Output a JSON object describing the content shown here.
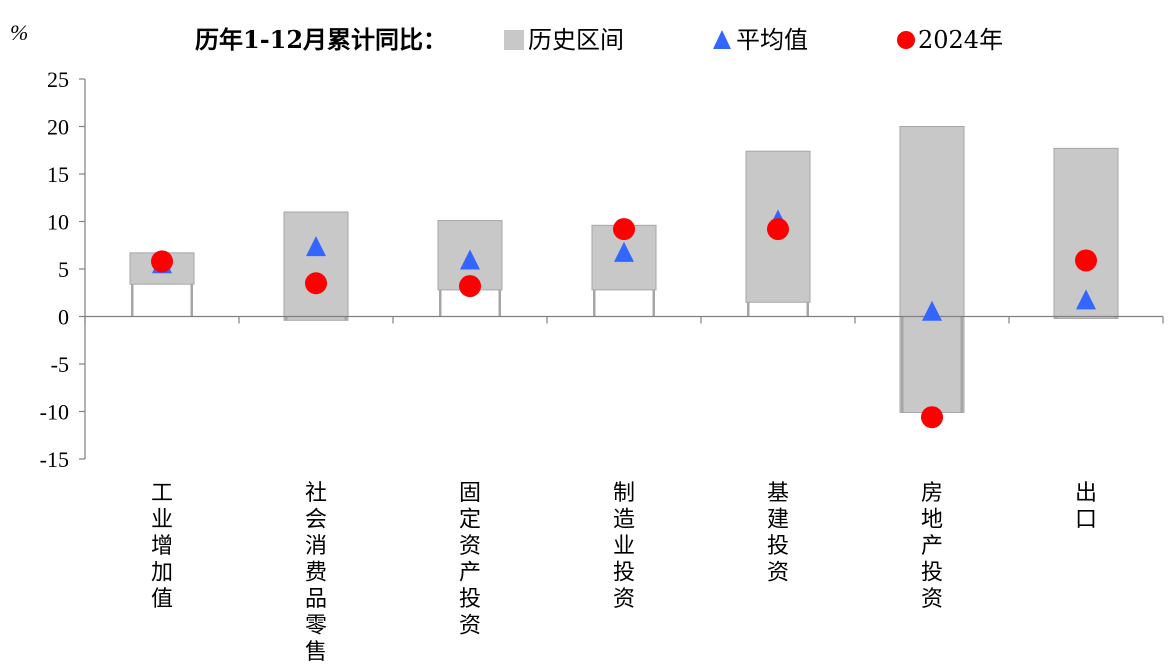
{
  "chart_data": {
    "type": "range-bar-with-markers",
    "unit_label": "%",
    "legend_title": "历年1-12月累计同比：",
    "legend": {
      "range": "历史区间",
      "mean": "平均值",
      "current": "2024年"
    },
    "ylim": [
      -15,
      25
    ],
    "yticks": [
      25,
      20,
      15,
      10,
      5,
      0,
      -5,
      -10,
      -15
    ],
    "ytick_labels": [
      "25",
      "20",
      "15",
      "10",
      "5",
      "0",
      "-5",
      "-10",
      "-15"
    ],
    "categories": [
      "工业增加值",
      "社会消费品零售",
      "固定资产投资",
      "制造业投资",
      "基建投资",
      "房地产投资",
      "出口"
    ],
    "series": [
      {
        "name": "历史区间",
        "kind": "range",
        "low": [
          3.4,
          -0.4,
          2.8,
          2.8,
          1.5,
          -10.1,
          -0.2
        ],
        "high": [
          6.7,
          11.0,
          10.1,
          9.6,
          17.4,
          20.0,
          17.7
        ]
      },
      {
        "name": "平均值",
        "kind": "triangle",
        "values": [
          5.5,
          7.3,
          5.9,
          6.7,
          10.1,
          0.5,
          1.7
        ]
      },
      {
        "name": "2024年",
        "kind": "circle",
        "values": [
          5.8,
          3.5,
          3.2,
          9.2,
          9.2,
          -10.6,
          5.9
        ]
      }
    ],
    "colors": {
      "range": "#c8c8c8",
      "range_edge": "#a6a6a6",
      "mean": "#3366ff",
      "current": "#ff0000",
      "axis": "#808080"
    },
    "grid": false,
    "legend_position": "top"
  }
}
